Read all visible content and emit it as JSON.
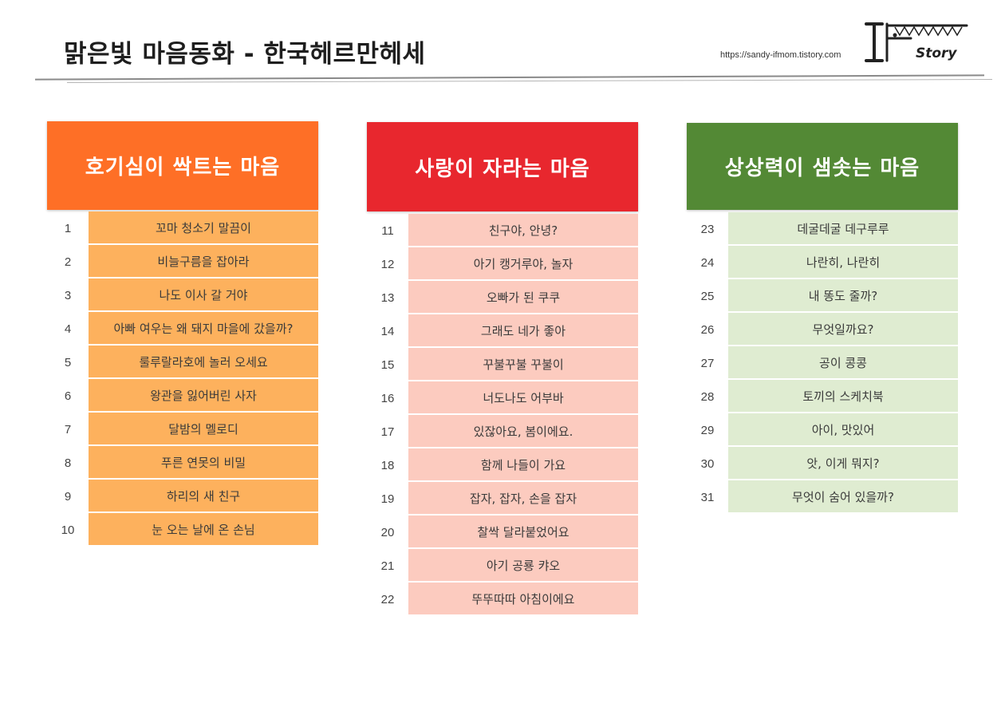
{
  "header": {
    "title": "맑은빛 마음동화 - 한국헤르만헤세",
    "url": "https://sandy-ifmom.tistory.com",
    "logo_text": "Story",
    "logo_mark": "IF"
  },
  "columns": [
    {
      "title": "호기심이 싹트는 마음",
      "header_color": "#fe6f26",
      "cell_color": "#fdb15d",
      "items": [
        {
          "num": "1",
          "title": "꼬마 청소기 말끔이"
        },
        {
          "num": "2",
          "title": "비늘구름을 잡아라"
        },
        {
          "num": "3",
          "title": "나도 이사 갈 거야"
        },
        {
          "num": "4",
          "title": "아빠 여우는 왜 돼지 마을에 갔을까?"
        },
        {
          "num": "5",
          "title": "룰루랄라호에 놀러 오세요"
        },
        {
          "num": "6",
          "title": "왕관을 잃어버린 사자"
        },
        {
          "num": "7",
          "title": "달밤의 멜로디"
        },
        {
          "num": "8",
          "title": "푸른 연못의 비밀"
        },
        {
          "num": "9",
          "title": "하리의 새 친구"
        },
        {
          "num": "10",
          "title": "눈 오는 날에 온 손님"
        }
      ]
    },
    {
      "title": "사랑이 자라는 마음",
      "header_color": "#e8272e",
      "cell_color": "#fccbbf",
      "items": [
        {
          "num": "11",
          "title": "친구야, 안녕?"
        },
        {
          "num": "12",
          "title": "아기 캥거루야, 놀자"
        },
        {
          "num": "13",
          "title": "오빠가 된 쿠쿠"
        },
        {
          "num": "14",
          "title": "그래도 네가 좋아"
        },
        {
          "num": "15",
          "title": "꾸불꾸불 꾸불이"
        },
        {
          "num": "16",
          "title": "너도나도 어부바"
        },
        {
          "num": "17",
          "title": "있잖아요, 봄이에요."
        },
        {
          "num": "18",
          "title": "함께 나들이 가요"
        },
        {
          "num": "19",
          "title": "잡자, 잡자, 손을 잡자"
        },
        {
          "num": "20",
          "title": "찰싹 달라붙었어요"
        },
        {
          "num": "21",
          "title": "아기 공룡 캬오"
        },
        {
          "num": "22",
          "title": "뚜뚜따따 아침이에요"
        }
      ]
    },
    {
      "title": "상상력이 샘솟는 마음",
      "header_color": "#538935",
      "cell_color": "#dfecd1",
      "items": [
        {
          "num": "23",
          "title": "데굴데굴 데구루루"
        },
        {
          "num": "24",
          "title": "나란히, 나란히"
        },
        {
          "num": "25",
          "title": "내 똥도 줄까?"
        },
        {
          "num": "26",
          "title": "무엇일까요?"
        },
        {
          "num": "27",
          "title": "공이 콩콩"
        },
        {
          "num": "28",
          "title": "토끼의 스케치북"
        },
        {
          "num": "29",
          "title": "아이, 맛있어"
        },
        {
          "num": "30",
          "title": "앗, 이게 뭐지?"
        },
        {
          "num": "31",
          "title": "무엇이 숨어 있을까?"
        }
      ]
    }
  ]
}
